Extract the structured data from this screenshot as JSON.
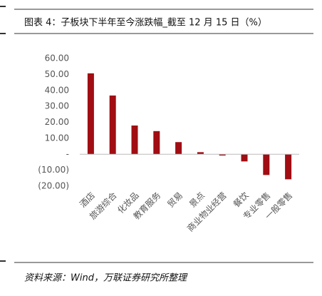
{
  "chart_data": {
    "type": "bar",
    "title": "图表 4：子板块下半年至今涨跌幅_截至 12 月 15 日（%）",
    "source": "资料来源：Wind，万联证券研究所整理",
    "categories": [
      "酒店",
      "旅游综合",
      "化妆品",
      "教育服务",
      "贸易",
      "景点",
      "商业物业经营",
      "餐饮",
      "专业零售",
      "一般零售"
    ],
    "values": [
      50.7,
      36.8,
      18.0,
      14.5,
      7.6,
      1.3,
      -0.8,
      -4.5,
      -13.0,
      -15.7
    ],
    "color": "#a00d12",
    "ylim": [
      -20,
      60
    ],
    "yticks": [
      {
        "value": -20,
        "label": "(20.00)"
      },
      {
        "value": -10,
        "label": "(10.00)"
      },
      {
        "value": 0,
        "label": "-"
      },
      {
        "value": 10,
        "label": "10.00"
      },
      {
        "value": 20,
        "label": "20.00"
      },
      {
        "value": 30,
        "label": "30.00"
      },
      {
        "value": 40,
        "label": "40.00"
      },
      {
        "value": 50,
        "label": "50.00"
      },
      {
        "value": 60,
        "label": "60.00"
      }
    ],
    "grid": false
  }
}
